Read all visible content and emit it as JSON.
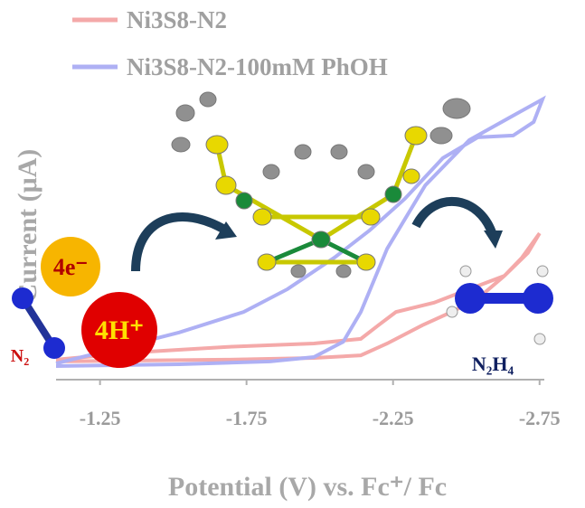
{
  "chart_data": {
    "type": "line",
    "xlabel": "Potential (V) vs. Fc⁺/ Fc",
    "ylabel": "Current (μA)",
    "xlim": [
      -1.1,
      -2.76
    ],
    "ylim": [
      0,
      100
    ],
    "xticks": [
      -1.25,
      -1.75,
      -2.25,
      -2.75
    ],
    "series": [
      {
        "name": "Ni3S8-N2",
        "color": "#f4a9a9",
        "x": [
          -1.1,
          -1.37,
          -1.68,
          -1.98,
          -2.14,
          -2.23,
          -2.35,
          -2.45,
          -2.54,
          -2.63,
          -2.69,
          -2.75,
          -2.71,
          -2.63,
          -2.51,
          -2.39,
          -2.26,
          -2.2,
          -2.14,
          -1.98,
          -1.68,
          -1.37,
          -1.1
        ],
        "values": [
          6.3,
          6.6,
          6.9,
          7.5,
          8.4,
          12.5,
          18.8,
          23.4,
          28.1,
          35.9,
          42.2,
          50.6,
          43.8,
          35.9,
          31.3,
          26.6,
          23.4,
          18.8,
          14.1,
          12.5,
          11.3,
          9.4,
          6.9
        ]
      },
      {
        "name": "Ni3S8-N2-100mM PhOH",
        "color": "#aeb0f4",
        "x": [
          -1.1,
          -1.52,
          -1.83,
          -1.98,
          -2.08,
          -2.14,
          -2.23,
          -2.36,
          -2.51,
          -2.66,
          -2.76,
          -2.73,
          -2.66,
          -2.54,
          -2.42,
          -2.29,
          -2.17,
          -2.05,
          -1.89,
          -1.74,
          -1.52,
          -1.31,
          -1.1
        ],
        "values": [
          4.7,
          5.3,
          6.3,
          7.8,
          13.1,
          23.4,
          45.3,
          67.2,
          82.8,
          91.3,
          96.9,
          89.1,
          84.4,
          83.8,
          76.6,
          62.5,
          51.6,
          42.2,
          31.3,
          23.4,
          16.3,
          10.9,
          5.6
        ]
      }
    ],
    "annotations": [
      "4e⁻",
      "4H⁺",
      "N₂",
      "N₂H₄"
    ]
  }
}
